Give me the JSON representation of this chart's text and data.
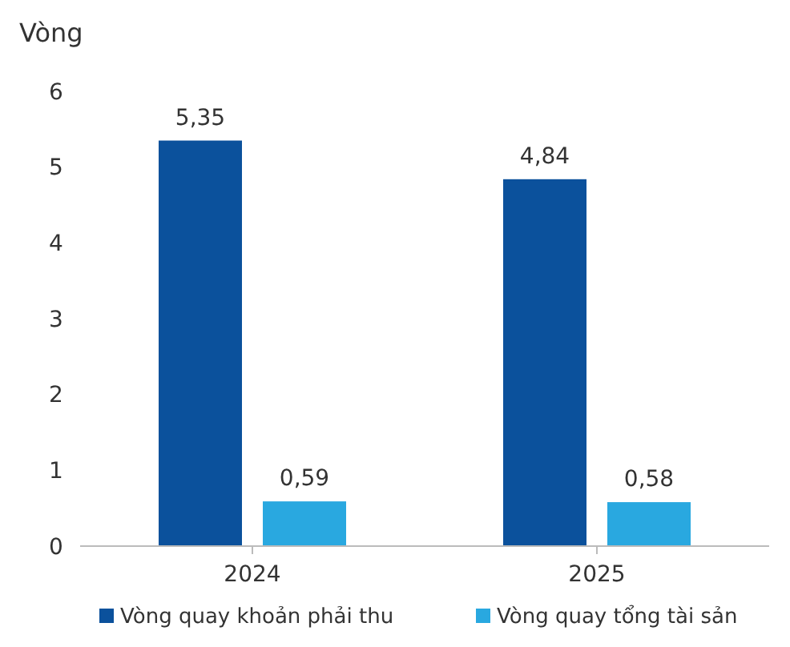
{
  "chart_data": {
    "type": "bar",
    "ylabel": "Vòng",
    "categories": [
      "2024",
      "2025"
    ],
    "series": [
      {
        "name": "Vòng quay khoản phải thu",
        "color": "#0b519c",
        "values": [
          5.35,
          4.84
        ],
        "value_labels": [
          "5,35",
          "4,84"
        ]
      },
      {
        "name": "Vòng quay tổng tài sản",
        "color": "#29a8e0",
        "values": [
          0.59,
          0.58
        ],
        "value_labels": [
          "0,59",
          "0,58"
        ]
      }
    ],
    "ylim": [
      0,
      6
    ],
    "yticks": [
      0,
      1,
      2,
      3,
      4,
      5,
      6
    ],
    "grid": false,
    "legend": "bottom"
  }
}
